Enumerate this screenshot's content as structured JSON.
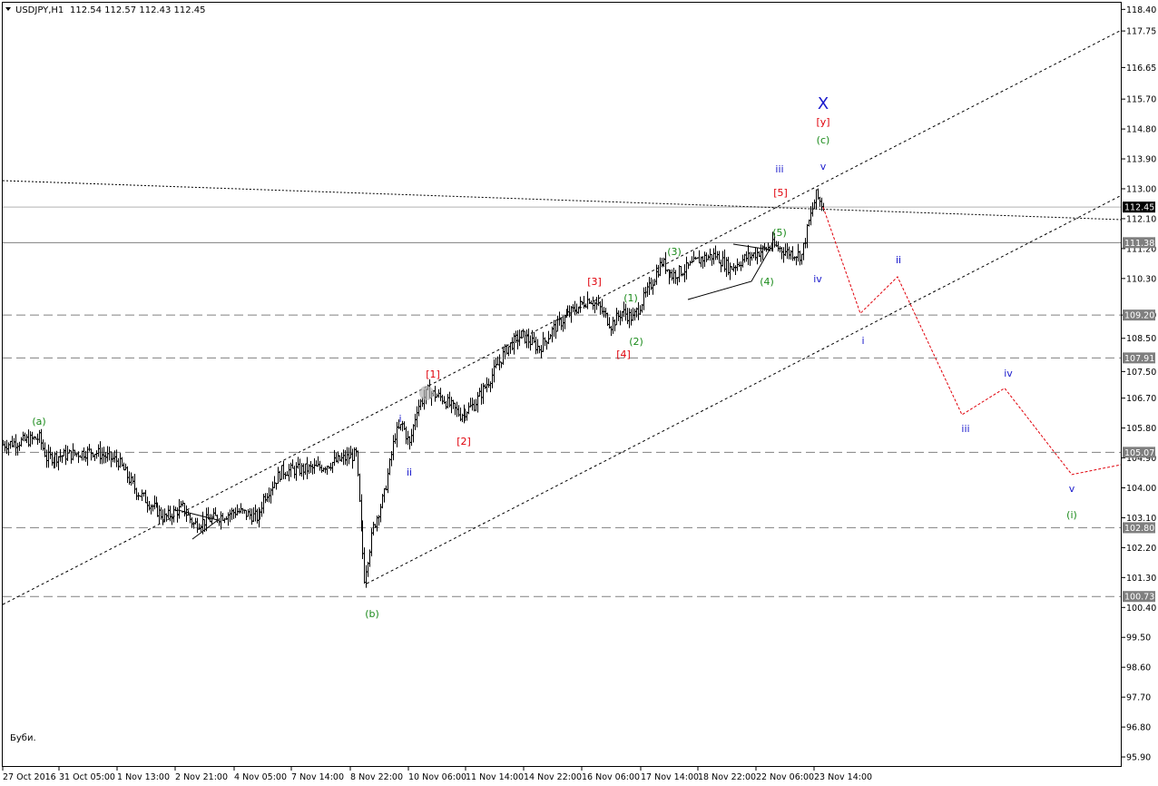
{
  "header": {
    "symbol": "USDJPY,H1",
    "ohlc": "112.54 112.57 112.43 112.45"
  },
  "note": "Буби.",
  "colors": {
    "background": "#ffffff",
    "bars": "#000000",
    "grid_line": "#808080",
    "price_box": "#7f7f7f",
    "wave_green": "#1a8a1a",
    "wave_red": "#e0000a",
    "wave_blue": "#1a1acc",
    "forecast_path": "#e0000a"
  },
  "chart_data": {
    "type": "candlestick",
    "title": "USDJPY,H1",
    "y_range": [
      95.6,
      118.6
    ],
    "y_ticks": [
      "118.40",
      "117.75",
      "116.65",
      "115.70",
      "114.80",
      "113.90",
      "113.00",
      "112.10",
      "111.20",
      "110.30",
      "109.20",
      "108.50",
      "107.50",
      "106.70",
      "105.80",
      "104.90",
      "104.00",
      "103.10",
      "102.20",
      "101.30",
      "100.40",
      "99.50",
      "98.60",
      "97.70",
      "96.80",
      "95.90"
    ],
    "x_time_labels": [
      "27 Oct 2016",
      "31 Oct 05:00",
      "1 Nov 13:00",
      "2 Nov 21:00",
      "4 Nov 05:00",
      "7 Nov 14:00",
      "8 Nov 22:00",
      "10 Nov 06:00",
      "11 Nov 14:00",
      "14 Nov 22:00",
      "16 Nov 06:00",
      "17 Nov 14:00",
      "18 Nov 22:00",
      "22 Nov 06:00",
      "23 Nov 14:00"
    ],
    "current_price": "112.45",
    "horizontal_levels": [
      {
        "value": "111.38",
        "style": "solid"
      },
      {
        "value": "109.20",
        "style": "dashed"
      },
      {
        "value": "107.91",
        "style": "dashed"
      },
      {
        "value": "105.07",
        "style": "dashed"
      },
      {
        "value": "102.80",
        "style": "dashed"
      },
      {
        "value": "100.73",
        "style": "dashed"
      }
    ],
    "price_path": [
      {
        "i": 0,
        "p": 105.3
      },
      {
        "i": 20,
        "p": 105.5
      },
      {
        "i": 24,
        "p": 104.9
      },
      {
        "i": 50,
        "p": 105.1
      },
      {
        "i": 64,
        "p": 104.8
      },
      {
        "i": 74,
        "p": 103.9
      },
      {
        "i": 84,
        "p": 103.4
      },
      {
        "i": 90,
        "p": 103.1
      },
      {
        "i": 100,
        "p": 103.4
      },
      {
        "i": 106,
        "p": 102.9
      },
      {
        "i": 118,
        "p": 103.1
      },
      {
        "i": 130,
        "p": 103.3
      },
      {
        "i": 142,
        "p": 103.1
      },
      {
        "i": 145,
        "p": 103.7
      },
      {
        "i": 155,
        "p": 104.5
      },
      {
        "i": 175,
        "p": 104.6
      },
      {
        "i": 185,
        "p": 104.8
      },
      {
        "i": 196,
        "p": 105.0
      },
      {
        "i": 198,
        "p": 103.5
      },
      {
        "i": 201,
        "p": 101.3
      },
      {
        "i": 206,
        "p": 102.8
      },
      {
        "i": 212,
        "p": 103.8
      },
      {
        "i": 218,
        "p": 105.6
      },
      {
        "i": 222,
        "p": 105.9
      },
      {
        "i": 226,
        "p": 105.3
      },
      {
        "i": 230,
        "p": 106.4
      },
      {
        "i": 236,
        "p": 106.9
      },
      {
        "i": 244,
        "p": 106.7
      },
      {
        "i": 254,
        "p": 106.2
      },
      {
        "i": 262,
        "p": 106.5
      },
      {
        "i": 272,
        "p": 107.4
      },
      {
        "i": 280,
        "p": 108.2
      },
      {
        "i": 288,
        "p": 108.6
      },
      {
        "i": 298,
        "p": 108.2
      },
      {
        "i": 306,
        "p": 108.8
      },
      {
        "i": 314,
        "p": 109.2
      },
      {
        "i": 326,
        "p": 109.7
      },
      {
        "i": 332,
        "p": 109.4
      },
      {
        "i": 338,
        "p": 108.9
      },
      {
        "i": 344,
        "p": 109.3
      },
      {
        "i": 350,
        "p": 109.1
      },
      {
        "i": 358,
        "p": 109.9
      },
      {
        "i": 366,
        "p": 110.8
      },
      {
        "i": 372,
        "p": 110.4
      },
      {
        "i": 380,
        "p": 110.6
      },
      {
        "i": 388,
        "p": 110.9
      },
      {
        "i": 396,
        "p": 111.0
      },
      {
        "i": 404,
        "p": 110.6
      },
      {
        "i": 412,
        "p": 110.9
      },
      {
        "i": 420,
        "p": 111.1
      },
      {
        "i": 428,
        "p": 111.3
      },
      {
        "i": 436,
        "p": 111.1
      },
      {
        "i": 444,
        "p": 111.0
      },
      {
        "i": 448,
        "p": 112.0
      },
      {
        "i": 452,
        "p": 112.8
      },
      {
        "i": 456,
        "p": 112.45
      }
    ],
    "forecast_path": [
      {
        "label": "start",
        "p": 112.45
      },
      {
        "label": "i",
        "p": 109.25
      },
      {
        "label": "ii",
        "p": 110.35
      },
      {
        "label": "iii",
        "p": 106.2
      },
      {
        "label": "iv",
        "p": 107.0
      },
      {
        "label": "v",
        "p": 104.4
      },
      {
        "label": "end",
        "p": 104.7
      }
    ],
    "wave_labels": [
      {
        "text": "(a)",
        "color": "green"
      },
      {
        "text": "(b)",
        "color": "green"
      },
      {
        "text": "(c)",
        "color": "green"
      },
      {
        "text": "[y]",
        "color": "red"
      },
      {
        "text": "X",
        "color": "blue"
      },
      {
        "text": "[1]",
        "color": "red"
      },
      {
        "text": "[2]",
        "color": "red"
      },
      {
        "text": "[3]",
        "color": "red"
      },
      {
        "text": "[4]",
        "color": "red"
      },
      {
        "text": "[5]",
        "color": "red"
      },
      {
        "text": "i",
        "color": "blue"
      },
      {
        "text": "ii",
        "color": "blue"
      },
      {
        "text": "iii",
        "color": "blue"
      },
      {
        "text": "v",
        "color": "blue"
      },
      {
        "text": "iv",
        "color": "blue"
      },
      {
        "text": "(1)",
        "color": "green"
      },
      {
        "text": "(2)",
        "color": "green"
      },
      {
        "text": "(3)",
        "color": "green"
      },
      {
        "text": "(4)",
        "color": "green"
      },
      {
        "text": "(5)",
        "color": "green"
      },
      {
        "text": "i",
        "color": "blue"
      },
      {
        "text": "ii",
        "color": "blue"
      },
      {
        "text": "iii",
        "color": "blue"
      },
      {
        "text": "iv",
        "color": "blue"
      },
      {
        "text": "v",
        "color": "blue"
      },
      {
        "text": "(i)",
        "color": "green"
      }
    ]
  }
}
